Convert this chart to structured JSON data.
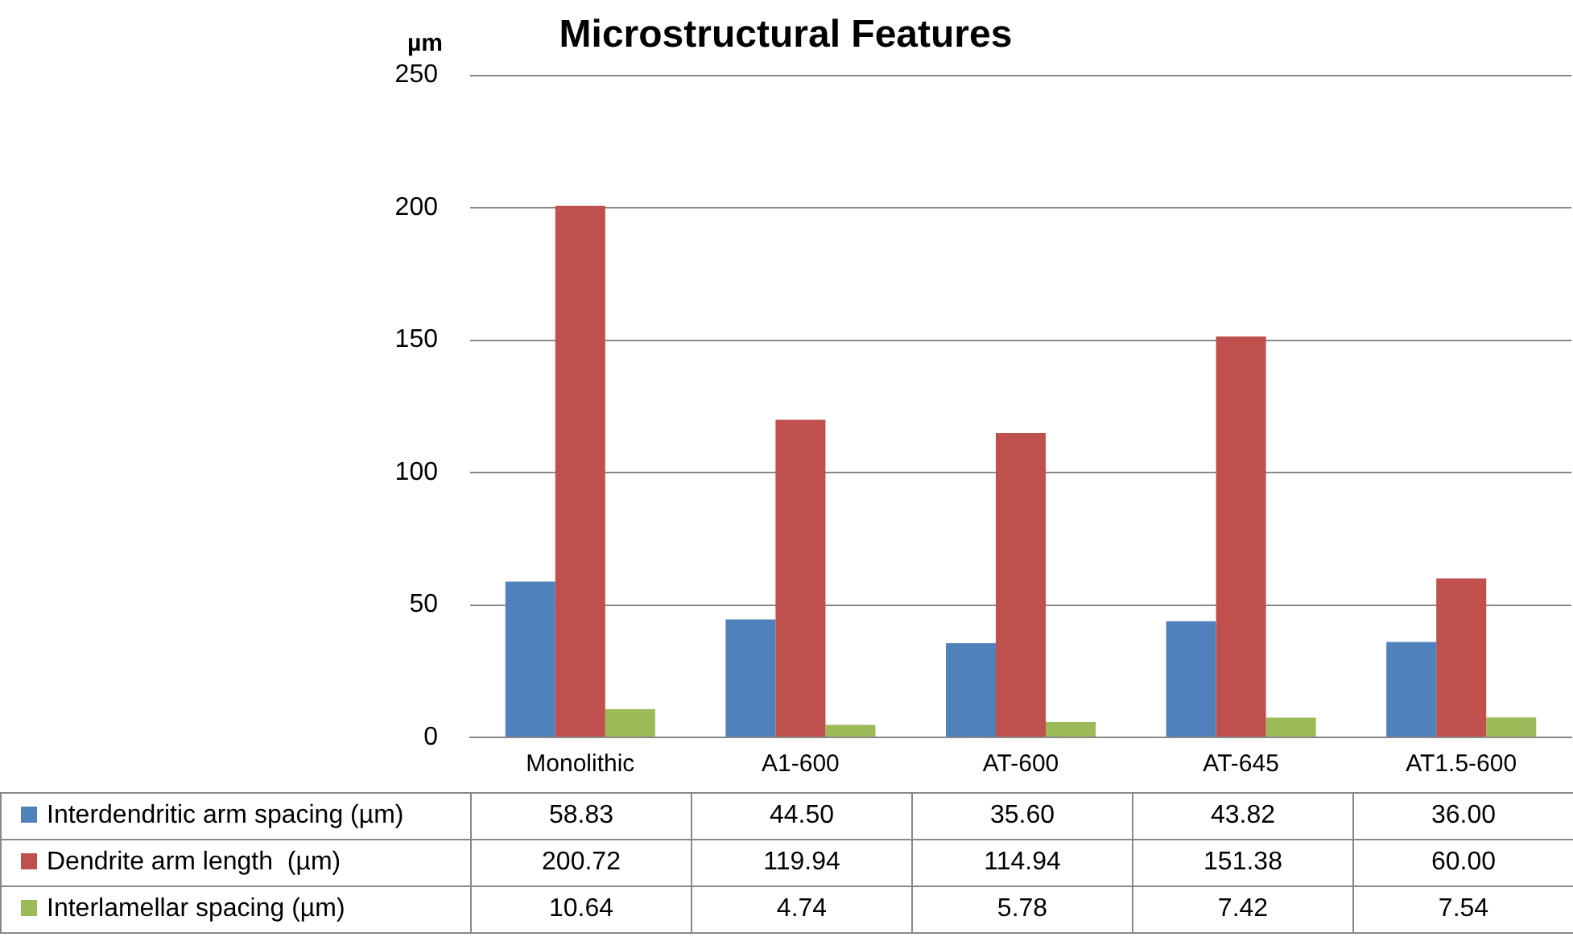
{
  "chart_data": {
    "type": "bar",
    "title": "Microstructural Features",
    "ylabel": "µm",
    "categories": [
      "Monolithic",
      "A1-600",
      "AT-600",
      "AT-645",
      "AT1.5-600"
    ],
    "series": [
      {
        "name": "Interdendritic arm spacing (µm)",
        "color": "#4f81bd",
        "values": [
          58.83,
          44.5,
          35.6,
          43.82,
          36
        ],
        "value_labels": [
          "58.83",
          "44.50",
          "35.60",
          "43.82",
          "36.00"
        ]
      },
      {
        "name": "Dendrite arm length  (µm)",
        "color": "#c0504d",
        "values": [
          200.72,
          119.94,
          114.94,
          151.38,
          60
        ],
        "value_labels": [
          "200.72",
          "119.94",
          "114.94",
          "151.38",
          "60.00"
        ]
      },
      {
        "name": "Interlamellar spacing (µm)",
        "color": "#9bbb59",
        "values": [
          10.64,
          4.74,
          5.78,
          7.42,
          7.54
        ],
        "value_labels": [
          "10.64",
          "4.74",
          "5.78",
          "7.42",
          "7.54"
        ]
      }
    ],
    "ylim": [
      0,
      250
    ],
    "yticks": [
      0,
      50,
      100,
      150,
      200,
      250
    ],
    "grid": "y",
    "legend": "bottom"
  }
}
